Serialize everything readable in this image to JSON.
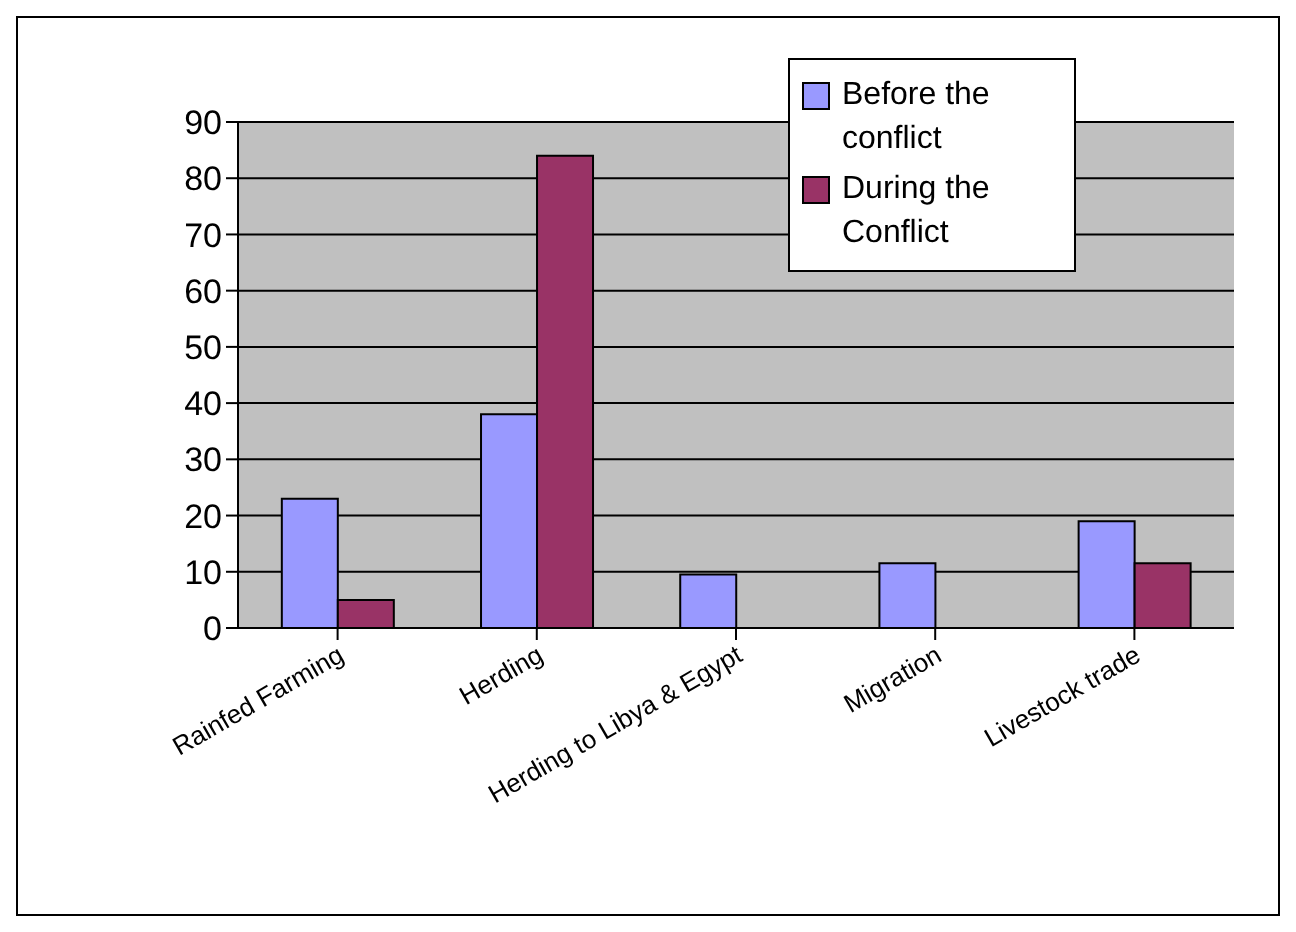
{
  "chart_data": {
    "type": "bar",
    "categories": [
      "Rainfed Farming",
      "Herding",
      "Herding to Libya & Egypt",
      "Migration",
      "Livestock trade"
    ],
    "series": [
      {
        "name": "Before the conflict",
        "color": "#9999ff",
        "values": [
          23,
          38,
          9.5,
          11.5,
          19
        ]
      },
      {
        "name": "During the Conflict",
        "color": "#993366",
        "values": [
          5,
          84,
          0,
          0,
          11.5
        ]
      }
    ],
    "ylim": [
      0,
      90
    ],
    "yticks": [
      0,
      10,
      20,
      30,
      40,
      50,
      60,
      70,
      80,
      90
    ],
    "grid": "y",
    "legend": "top right"
  }
}
